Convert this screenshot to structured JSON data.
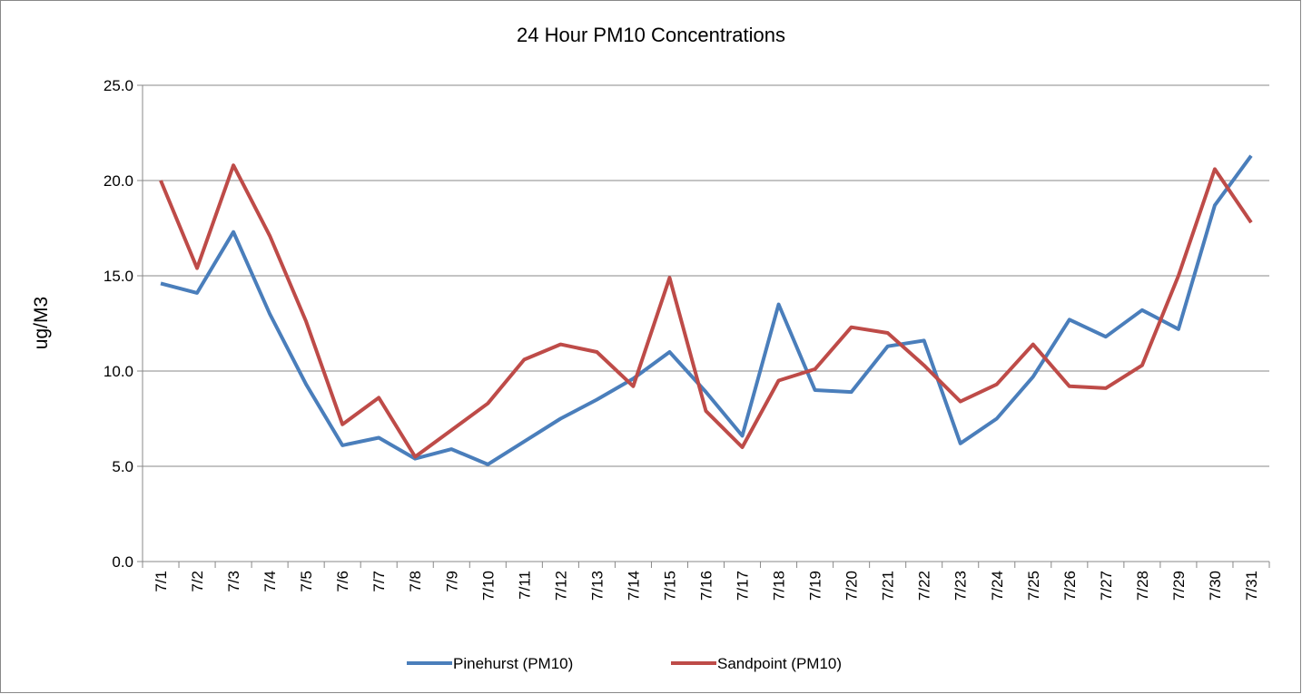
{
  "chart_data": {
    "type": "line",
    "title": "24 Hour PM10 Concentrations",
    "y_label": "ug/M3",
    "categories": [
      "7/1",
      "7/2",
      "7/3",
      "7/4",
      "7/5",
      "7/6",
      "7/7",
      "7/8",
      "7/9",
      "7/10",
      "7/11",
      "7/12",
      "7/13",
      "7/14",
      "7/15",
      "7/16",
      "7/17",
      "7/18",
      "7/19",
      "7/20",
      "7/21",
      "7/22",
      "7/23",
      "7/24",
      "7/25",
      "7/26",
      "7/27",
      "7/28",
      "7/29",
      "7/30",
      "7/31"
    ],
    "series": [
      {
        "name": "Pinehurst (PM10)",
        "color": "#4a7ebb",
        "values": [
          14.6,
          14.1,
          17.3,
          13.0,
          9.3,
          6.1,
          6.5,
          5.4,
          5.9,
          5.1,
          6.3,
          7.5,
          8.5,
          9.6,
          11.0,
          8.9,
          6.6,
          13.5,
          9.0,
          8.9,
          11.3,
          11.6,
          6.2,
          7.5,
          9.7,
          12.7,
          11.8,
          13.2,
          12.2,
          18.7,
          21.3
        ]
      },
      {
        "name": "Sandpoint (PM10)",
        "color": "#be4b48",
        "values": [
          20.0,
          15.4,
          20.8,
          17.1,
          12.6,
          7.2,
          8.6,
          5.5,
          6.9,
          8.3,
          10.6,
          11.4,
          11.0,
          9.2,
          14.9,
          7.9,
          6.0,
          9.5,
          10.1,
          12.3,
          12.0,
          10.3,
          8.4,
          9.3,
          11.4,
          9.2,
          9.1,
          10.3,
          15.0,
          20.6,
          17.8
        ]
      }
    ],
    "ylim": [
      0,
      25
    ],
    "yticks": [
      {
        "value": 0,
        "label": "0.0"
      },
      {
        "value": 5,
        "label": "5.0"
      },
      {
        "value": 10,
        "label": "10.0"
      },
      {
        "value": 15,
        "label": "15.0"
      },
      {
        "value": 20,
        "label": "20.0"
      },
      {
        "value": 25,
        "label": "25.0"
      }
    ],
    "grid": true,
    "legend": "bottom"
  }
}
